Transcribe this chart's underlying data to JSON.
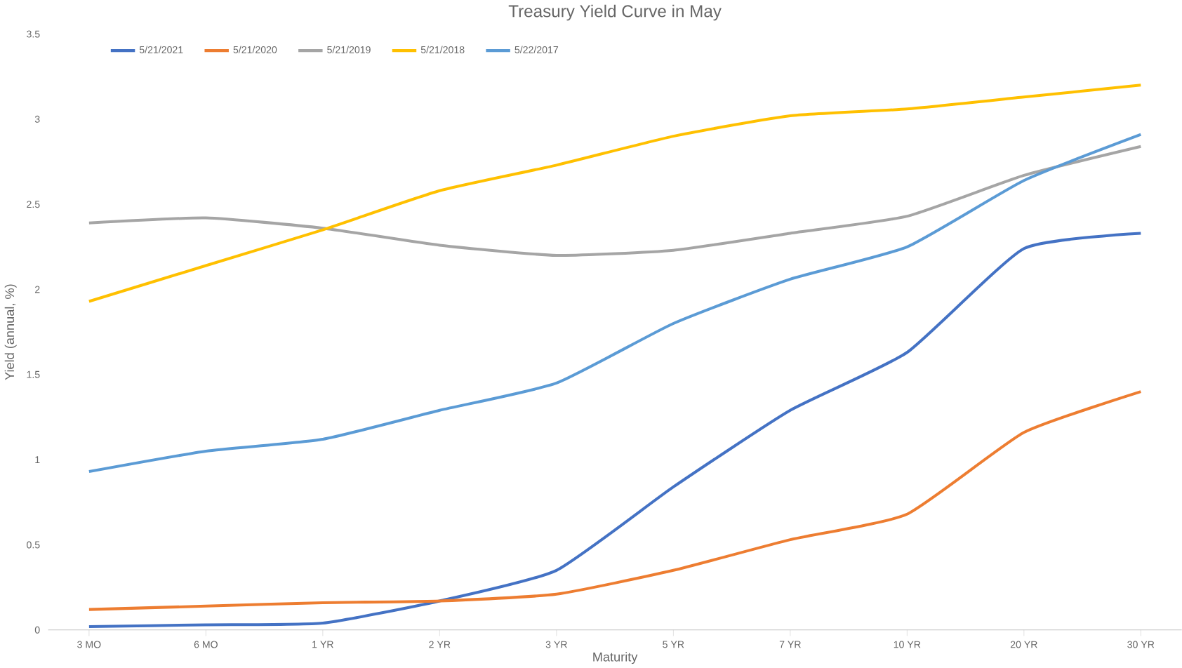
{
  "chart_data": {
    "type": "line",
    "title": "Treasury Yield Curve in May",
    "xlabel": "Maturity",
    "ylabel": "Yield (annual, %)",
    "categories": [
      "3 MO",
      "6 MO",
      "1 YR",
      "2 YR",
      "3 YR",
      "5 YR",
      "7 YR",
      "10 YR",
      "20 YR",
      "30 YR"
    ],
    "series": [
      {
        "name": "5/21/2021",
        "color": "#4472c4",
        "values": [
          0.02,
          0.03,
          0.04,
          0.17,
          0.35,
          0.84,
          1.29,
          1.63,
          2.24,
          2.33
        ]
      },
      {
        "name": "5/21/2020",
        "color": "#ed7d31",
        "values": [
          0.12,
          0.14,
          0.16,
          0.17,
          0.21,
          0.35,
          0.53,
          0.68,
          1.16,
          1.4
        ]
      },
      {
        "name": "5/21/2019",
        "color": "#a5a5a5",
        "values": [
          2.39,
          2.42,
          2.36,
          2.26,
          2.2,
          2.23,
          2.33,
          2.43,
          2.67,
          2.84
        ]
      },
      {
        "name": "5/21/2018",
        "color": "#ffc000",
        "values": [
          1.93,
          2.14,
          2.35,
          2.58,
          2.73,
          2.9,
          3.02,
          3.06,
          3.13,
          3.2
        ]
      },
      {
        "name": "5/22/2017",
        "color": "#5b9bd5",
        "values": [
          0.93,
          1.05,
          1.12,
          1.29,
          1.45,
          1.8,
          2.06,
          2.25,
          2.64,
          2.91
        ]
      }
    ],
    "ylim": [
      0,
      3.5
    ],
    "yticks": [
      0,
      0.5,
      1,
      1.5,
      2,
      2.5,
      3,
      3.5
    ],
    "legend": "top left",
    "marker": "none",
    "line_style": "solid"
  }
}
